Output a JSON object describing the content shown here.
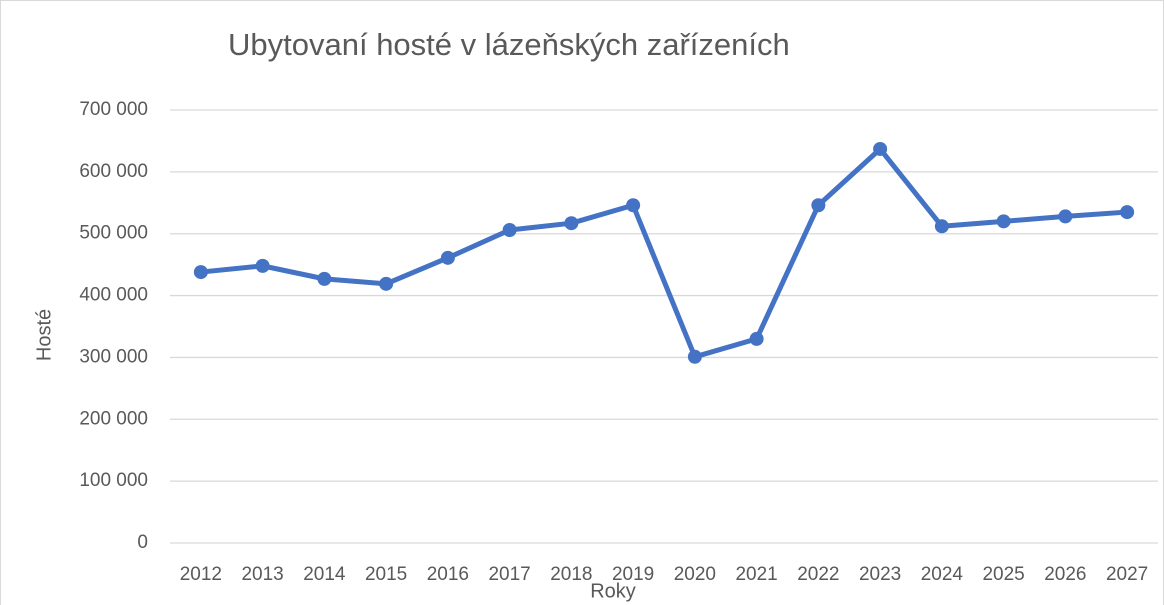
{
  "chart_data": {
    "type": "line",
    "title": "Ubytovaní hosté v lázeňských zařízeních",
    "x_label": "Roky",
    "y_label": "Hosté",
    "categories": [
      "2012",
      "2013",
      "2014",
      "2015",
      "2016",
      "2017",
      "2018",
      "2019",
      "2020",
      "2021",
      "2022",
      "2023",
      "2024",
      "2025",
      "2026",
      "2027"
    ],
    "series": [
      {
        "name": "Ubytovaní hosté",
        "color": "#4472c4",
        "values": [
          438000,
          448000,
          427000,
          419000,
          461000,
          506000,
          517000,
          546000,
          301000,
          330000,
          546000,
          637000,
          512000,
          520000,
          528000,
          535000
        ]
      }
    ],
    "ylim": [
      0,
      700000
    ],
    "yticks": [
      0,
      {
        "value": 100000,
        "label": "100 000"
      },
      {
        "value": 200000,
        "label": "200 000"
      },
      {
        "value": 300000,
        "label": "300 000"
      },
      {
        "value": 400000,
        "label": "400 000"
      },
      {
        "value": 500000,
        "label": "500 000"
      },
      {
        "value": 600000,
        "label": "600 000"
      },
      {
        "value": 700000,
        "label": "700 000"
      }
    ],
    "grid": true
  }
}
